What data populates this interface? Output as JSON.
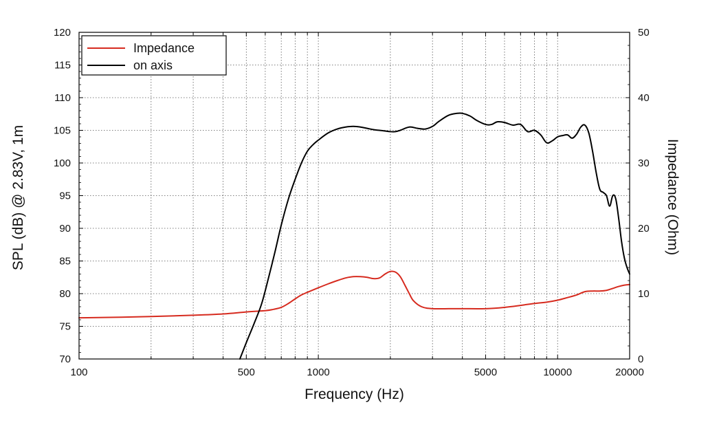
{
  "chart_data": {
    "type": "line",
    "xlabel": "Frequency (Hz)",
    "ylabel_left": "SPL (dB) @ 2.83V, 1m",
    "ylabel_right": "Impedance (Ohm)",
    "x_scale": "log",
    "xlim": [
      100,
      20000
    ],
    "ylim_left": [
      70,
      120
    ],
    "ylim_right": [
      0,
      50
    ],
    "x_tick_labels": [
      "100",
      "500",
      "1000",
      "5000",
      "10000",
      "20000"
    ],
    "y_left_tick_labels": [
      "70",
      "75",
      "80",
      "85",
      "90",
      "95",
      "100",
      "105",
      "110",
      "115",
      "120"
    ],
    "y_right_tick_labels": [
      "0",
      "10",
      "20",
      "30",
      "40",
      "50"
    ],
    "grid": true,
    "legend_position": "top-left",
    "legend": [
      "Impedance",
      "on axis"
    ],
    "series": [
      {
        "name": "Impedance",
        "axis": "right",
        "color": "#d62a1e",
        "x": [
          100,
          150,
          200,
          300,
          400,
          500,
          600,
          650,
          700,
          750,
          800,
          850,
          900,
          1000,
          1100,
          1200,
          1300,
          1400,
          1500,
          1600,
          1700,
          1800,
          1900,
          2000,
          2100,
          2200,
          2300,
          2400,
          2500,
          2700,
          3000,
          3500,
          4000,
          5000,
          6000,
          7000,
          8000,
          9000,
          10000,
          11000,
          12000,
          13000,
          14000,
          15000,
          16000,
          17000,
          18000,
          19000,
          20000
        ],
        "y": [
          6.3,
          6.4,
          6.5,
          6.7,
          6.9,
          7.2,
          7.4,
          7.6,
          7.9,
          8.5,
          9.2,
          9.8,
          10.2,
          10.9,
          11.5,
          12.0,
          12.4,
          12.6,
          12.6,
          12.5,
          12.3,
          12.4,
          13.0,
          13.4,
          13.3,
          12.6,
          11.3,
          10.0,
          8.9,
          8.0,
          7.7,
          7.7,
          7.7,
          7.7,
          7.9,
          8.2,
          8.5,
          8.7,
          9.0,
          9.4,
          9.8,
          10.3,
          10.4,
          10.4,
          10.5,
          10.8,
          11.1,
          11.3,
          11.4
        ]
      },
      {
        "name": "on axis",
        "axis": "left",
        "color": "#000000",
        "x": [
          470,
          500,
          540,
          580,
          620,
          660,
          700,
          750,
          800,
          850,
          900,
          950,
          1000,
          1100,
          1200,
          1300,
          1400,
          1500,
          1600,
          1700,
          1800,
          1900,
          2000,
          2100,
          2200,
          2400,
          2600,
          2800,
          3000,
          3200,
          3500,
          3800,
          4000,
          4300,
          4600,
          5000,
          5300,
          5600,
          6000,
          6500,
          7000,
          7500,
          8000,
          8500,
          9000,
          9500,
          10000,
          10500,
          11000,
          11500,
          12000,
          12500,
          13000,
          13500,
          14000,
          14500,
          15000,
          15500,
          16000,
          16500,
          17000,
          17500,
          18000,
          18500,
          19000,
          19500,
          20000
        ],
        "y": [
          70.0,
          72.5,
          75.5,
          78.5,
          82.5,
          86.5,
          90.5,
          94.5,
          97.5,
          100.0,
          101.8,
          102.8,
          103.5,
          104.6,
          105.2,
          105.5,
          105.6,
          105.5,
          105.3,
          105.1,
          105.0,
          104.9,
          104.8,
          104.8,
          105.0,
          105.5,
          105.3,
          105.2,
          105.6,
          106.4,
          107.3,
          107.6,
          107.6,
          107.2,
          106.5,
          105.9,
          105.9,
          106.3,
          106.2,
          105.8,
          105.9,
          104.8,
          105.0,
          104.3,
          103.1,
          103.4,
          104.0,
          104.2,
          104.3,
          103.8,
          104.4,
          105.5,
          105.8,
          104.6,
          101.8,
          98.5,
          96.0,
          95.5,
          95.0,
          93.4,
          95.0,
          94.5,
          91.5,
          88.0,
          85.5,
          84.0,
          83.0
        ]
      }
    ]
  }
}
